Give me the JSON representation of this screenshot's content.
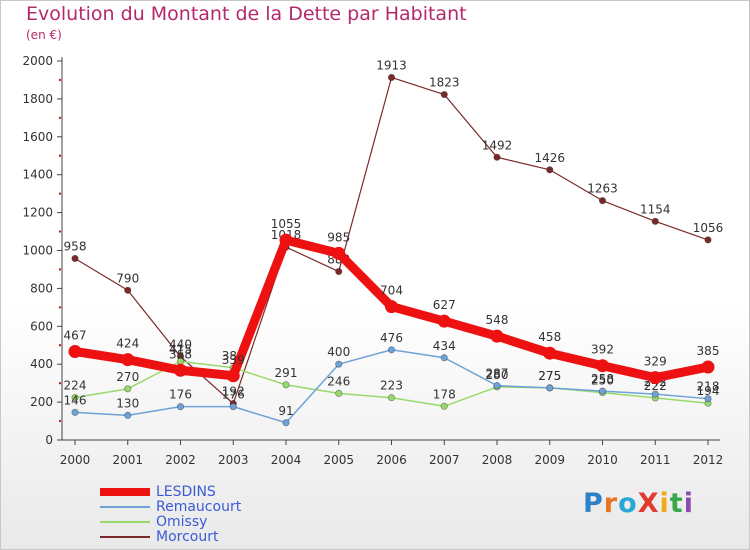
{
  "title": "Evolution du Montant de la Dette par Habitant",
  "unit": "(en €)",
  "logo": {
    "text": "ProXiti",
    "colors": [
      "#2e80c8",
      "#e8741f",
      "#2aa8d6",
      "#e23a2f",
      "#f0a81c",
      "#3aa84a",
      "#8a4bb0"
    ]
  },
  "chart_data": {
    "type": "line",
    "x": [
      2000,
      2001,
      2002,
      2003,
      2004,
      2005,
      2006,
      2007,
      2008,
      2009,
      2010,
      2011,
      2012
    ],
    "ylim": [
      0,
      2000
    ],
    "yticks": [
      0,
      200,
      400,
      600,
      800,
      1000,
      1200,
      1400,
      1600,
      1800,
      2000
    ],
    "grid": false,
    "legend_position": "bottom-left",
    "series": [
      {
        "name": "Morcourt",
        "color": "#7a2a2a",
        "width": 1.2,
        "values": [
          958,
          790,
          440,
          192,
          1018,
          889,
          1913,
          1823,
          1492,
          1426,
          1263,
          1154,
          1056
        ]
      },
      {
        "name": "Omissy",
        "color": "#99d96b",
        "width": 1.5,
        "values": [
          224,
          270,
          415,
          381,
          291,
          246,
          223,
          178,
          280,
          275,
          250,
          222,
          194
        ]
      },
      {
        "name": "Remaucourt",
        "color": "#6fa2d6",
        "width": 1.5,
        "values": [
          146,
          130,
          176,
          176,
          91,
          400,
          476,
          434,
          287,
          275,
          258,
          242,
          218
        ]
      },
      {
        "name": "LESDINS",
        "color": "#ee1111",
        "width": 9,
        "values": [
          467,
          424,
          368,
          339,
          1055,
          985,
          704,
          627,
          548,
          458,
          392,
          329,
          385
        ]
      }
    ],
    "legend": [
      {
        "name": "LESDINS",
        "color": "#ee1111"
      },
      {
        "name": "Remaucourt",
        "color": "#6fa2d6"
      },
      {
        "name": "Omissy",
        "color": "#99d96b"
      },
      {
        "name": "Morcourt",
        "color": "#7a2a2a"
      }
    ]
  }
}
